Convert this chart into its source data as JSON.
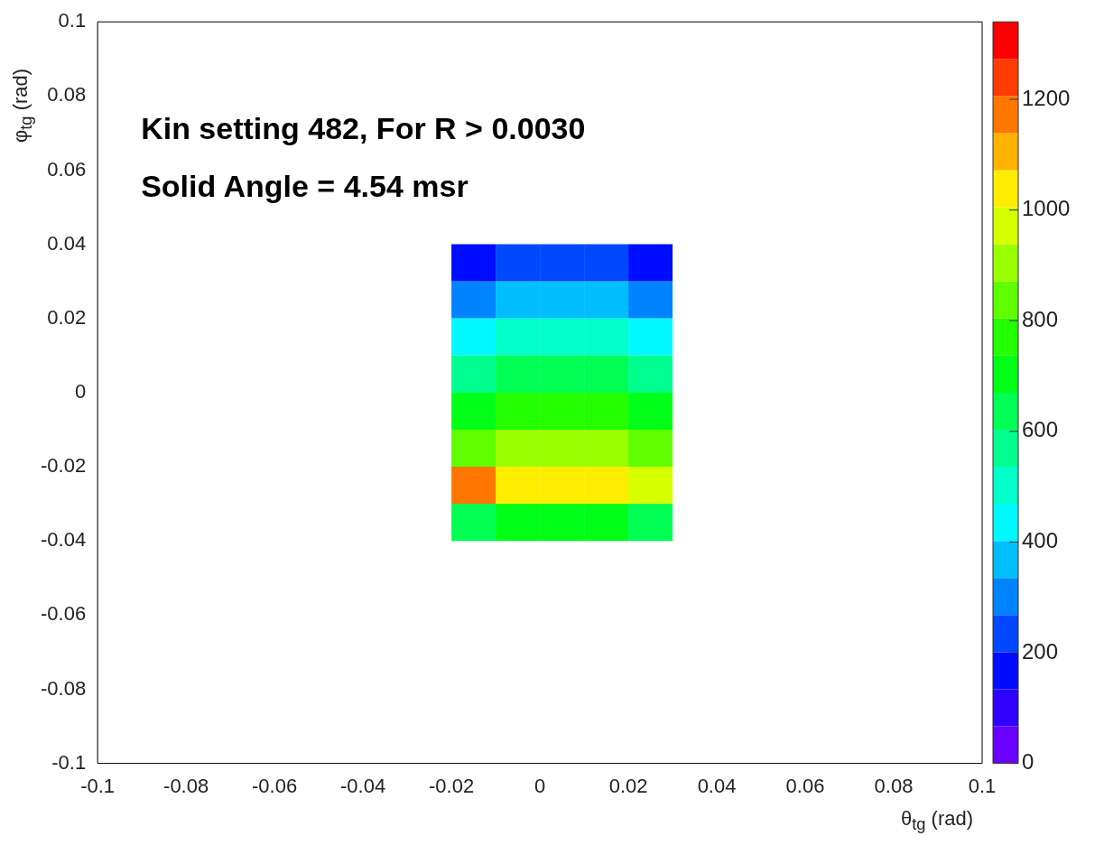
{
  "chart_data": {
    "type": "heatmap",
    "xlabel": "θ$_{tg}$ (rad)",
    "ylabel": "φ$_{tg}$ (rad)",
    "annotations": [
      "Kin setting 482, For R > 0.0030",
      "Solid Angle = 4.54 msr"
    ],
    "xlim": [
      -0.1,
      0.1
    ],
    "ylim": [
      -0.1,
      0.1
    ],
    "xticks": [
      -0.1,
      -0.08,
      -0.06,
      -0.04,
      -0.02,
      0,
      0.02,
      0.04,
      0.06,
      0.08,
      0.1
    ],
    "yticks": [
      -0.1,
      -0.08,
      -0.06,
      -0.04,
      -0.02,
      0,
      0.02,
      0.04,
      0.06,
      0.08,
      0.1
    ],
    "clim": [
      0,
      1340
    ],
    "cticks": [
      0,
      200,
      400,
      600,
      800,
      1000,
      1200
    ],
    "x": [
      -0.015,
      -0.005,
      0.005,
      0.015,
      0.025
    ],
    "y": [
      0.035,
      0.025,
      0.015,
      0.005,
      -0.005,
      -0.015,
      -0.025,
      -0.035
    ],
    "cells": [
      [
        180,
        220,
        220,
        210,
        170
      ],
      [
        320,
        360,
        370,
        360,
        310
      ],
      [
        440,
        490,
        500,
        490,
        430
      ],
      [
        570,
        640,
        630,
        620,
        560
      ],
      [
        690,
        770,
        760,
        750,
        680
      ],
      [
        840,
        920,
        900,
        910,
        830
      ],
      [
        1150,
        1060,
        1040,
        1060,
        980
      ],
      [
        640,
        700,
        700,
        700,
        620
      ]
    ]
  }
}
